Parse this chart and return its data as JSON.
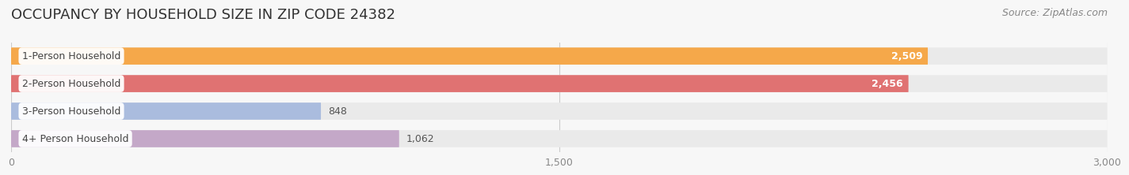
{
  "title": "OCCUPANCY BY HOUSEHOLD SIZE IN ZIP CODE 24382",
  "source": "Source: ZipAtlas.com",
  "categories": [
    "1-Person Household",
    "2-Person Household",
    "3-Person Household",
    "4+ Person Household"
  ],
  "values": [
    2509,
    2456,
    848,
    1062
  ],
  "bar_colors": [
    "#F5A84A",
    "#E07272",
    "#AABCDE",
    "#C4A8C8"
  ],
  "bar_bg_color": "#EAEAEA",
  "xlim_max": 3000,
  "xticks": [
    0,
    1500,
    3000
  ],
  "background_color": "#F7F7F7",
  "bar_height": 0.62,
  "title_fontsize": 13,
  "source_fontsize": 9,
  "label_fontsize": 9,
  "value_fontsize": 9
}
